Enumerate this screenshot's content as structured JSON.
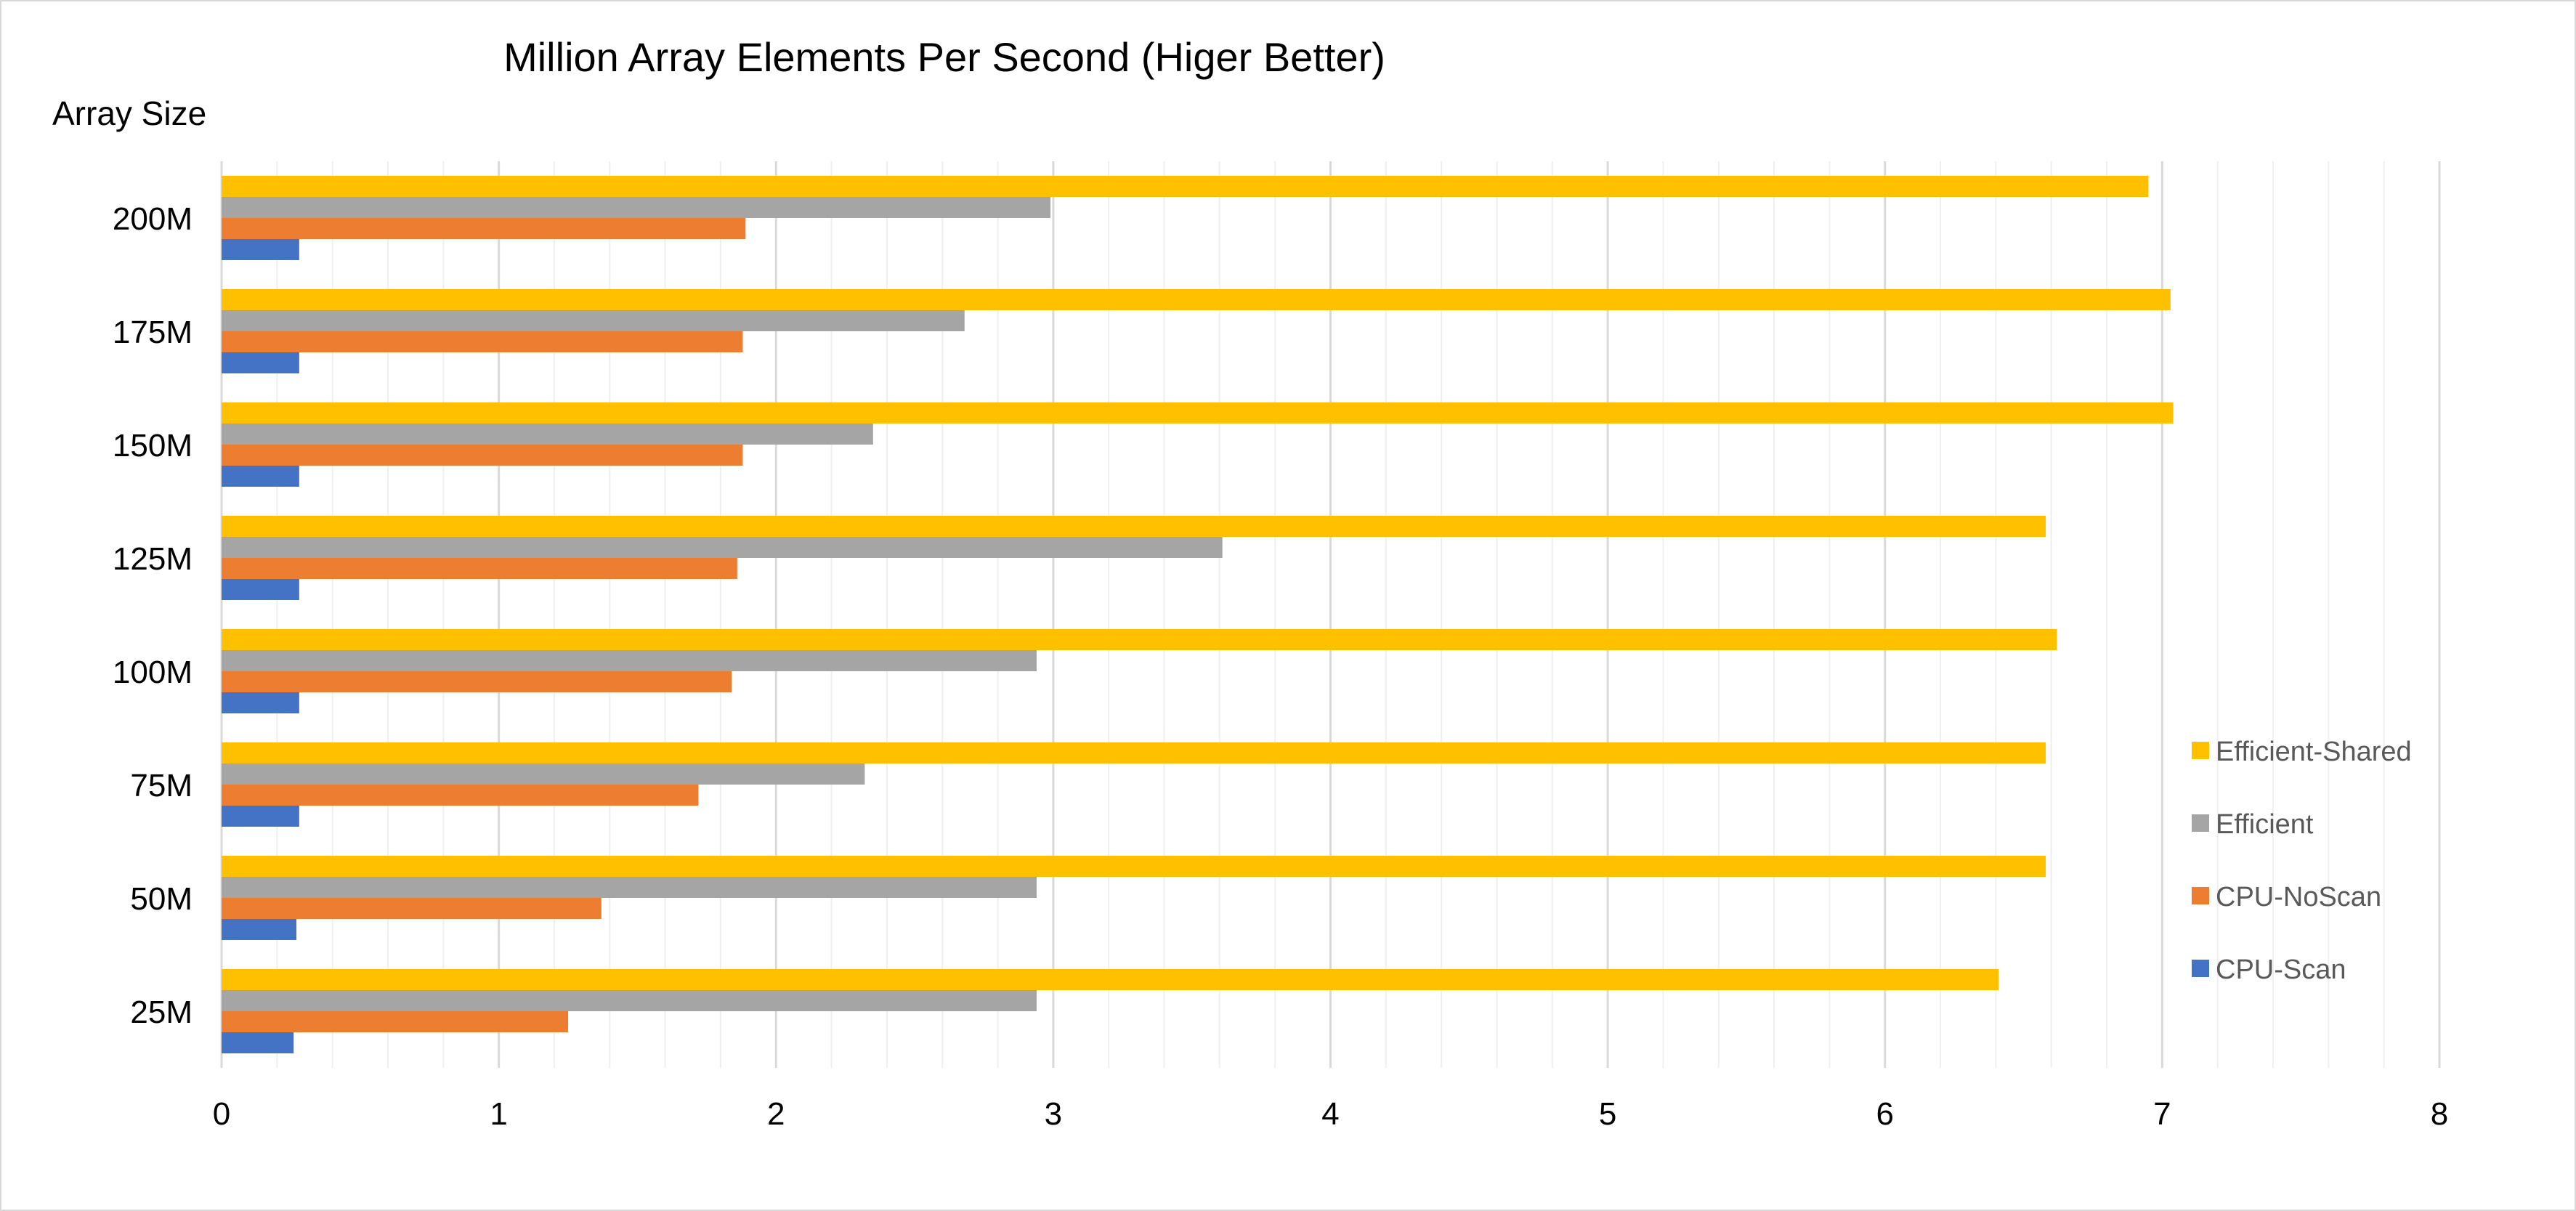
{
  "chart_data": {
    "type": "bar",
    "orientation": "horizontal",
    "title": "Million Array Elements Per Second (Higer Better)",
    "ylabel": "Array Size",
    "xlabel": "",
    "categories": [
      "25M",
      "50M",
      "75M",
      "100M",
      "125M",
      "150M",
      "175M",
      "200M"
    ],
    "xlim": [
      0,
      8
    ],
    "xticks": [
      "0",
      "1",
      "2",
      "3",
      "4",
      "5",
      "6",
      "7",
      "8"
    ],
    "grid": {
      "major": true,
      "minor": true,
      "minor_step": 0.2
    },
    "legend_position": "right",
    "series": [
      {
        "name": "CPU-Scan",
        "color": "#4472c4",
        "values": [
          0.26,
          0.27,
          0.28,
          0.28,
          0.28,
          0.28,
          0.28,
          0.28
        ]
      },
      {
        "name": "CPU-NoScan",
        "color": "#ed7d31",
        "values": [
          1.25,
          1.37,
          1.72,
          1.84,
          1.86,
          1.88,
          1.88,
          1.89
        ]
      },
      {
        "name": "Efficient",
        "color": "#a5a5a5",
        "values": [
          2.94,
          2.94,
          2.32,
          2.94,
          3.61,
          2.35,
          2.68,
          2.99
        ]
      },
      {
        "name": "Efficient-Shared",
        "color": "#ffc000",
        "values": [
          6.41,
          6.58,
          6.58,
          6.62,
          6.58,
          7.04,
          7.03,
          6.95
        ]
      }
    ]
  }
}
